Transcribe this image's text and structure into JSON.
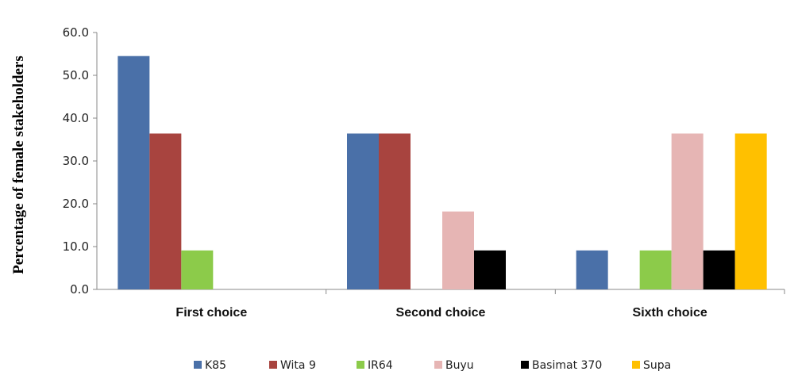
{
  "chart_data": {
    "type": "bar",
    "title": "",
    "xlabel": "",
    "ylabel": "Percentage of female stakeholders",
    "ylim": [
      0,
      60
    ],
    "yticks": [
      "0.0",
      "10.0",
      "20.0",
      "30.0",
      "40.0",
      "50.0",
      "60.0"
    ],
    "grid": false,
    "legend_position": "bottom",
    "categories": [
      "First choice",
      "Second choice",
      "Sixth choice"
    ],
    "series": [
      {
        "name": "K85",
        "color": "#4a70a8",
        "values": [
          54.5,
          36.4,
          9.1
        ]
      },
      {
        "name": "Wita 9",
        "color": "#a8443f",
        "values": [
          36.4,
          36.4,
          null
        ]
      },
      {
        "name": "IR64",
        "color": "#8ccb4a",
        "values": [
          9.1,
          null,
          9.1
        ]
      },
      {
        "name": "Buyu",
        "color": "#e6b5b4",
        "values": [
          null,
          18.2,
          36.4
        ]
      },
      {
        "name": "Basimat 370",
        "color": "#000000",
        "values": [
          null,
          9.1,
          9.1
        ]
      },
      {
        "name": "Supa",
        "color": "#ffc000",
        "values": [
          null,
          null,
          36.4
        ]
      }
    ]
  }
}
